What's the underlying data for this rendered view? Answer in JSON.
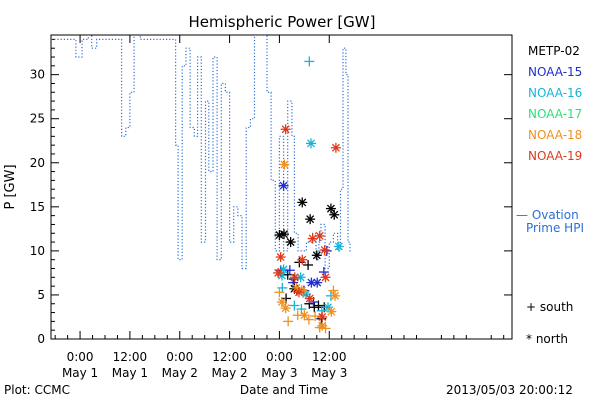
{
  "chart_data": {
    "type": "scatter",
    "title": "Hemispheric Power [GW]",
    "ylabel": "P [GW]",
    "xlabel": "Date and Time",
    "xlim": [
      -7,
      104
    ],
    "ylim": [
      0,
      34.5
    ],
    "yticks": [
      0,
      5,
      10,
      15,
      20,
      25,
      30
    ],
    "xticks": [
      {
        "t": 0,
        "time": "0:00",
        "date": "May 1"
      },
      {
        "t": 12,
        "time": "12:00",
        "date": "May 1"
      },
      {
        "t": 24,
        "time": "0:00",
        "date": "May 2"
      },
      {
        "t": 36,
        "time": "12:00",
        "date": "May 2"
      },
      {
        "t": 48,
        "time": "0:00",
        "date": "May 3"
      },
      {
        "t": 60,
        "time": "12:00",
        "date": "May 3"
      }
    ],
    "footer_left": "Plot: CCMC",
    "footer_right": "2013/05/03 20:00:12",
    "ovation": {
      "name": "— Ovation Prime HPI",
      "line1": "— Ovation",
      "line2": "Prime HPI",
      "color": "#2a6fd6",
      "points": [
        [
          -7,
          34
        ],
        [
          -1,
          34
        ],
        [
          -1,
          32
        ],
        [
          0.5,
          32
        ],
        [
          0.5,
          34
        ],
        [
          2,
          34
        ],
        [
          2,
          35
        ],
        [
          2.8,
          35
        ],
        [
          2.8,
          33
        ],
        [
          4,
          33
        ],
        [
          4,
          34
        ],
        [
          10,
          34
        ],
        [
          10,
          23
        ],
        [
          11,
          23
        ],
        [
          11,
          24
        ],
        [
          12,
          24
        ],
        [
          12,
          28
        ],
        [
          13,
          28
        ],
        [
          13,
          35
        ],
        [
          14.5,
          35
        ],
        [
          14.5,
          34
        ],
        [
          23,
          34
        ],
        [
          23,
          22
        ],
        [
          23.6,
          22
        ],
        [
          23.6,
          9
        ],
        [
          24.6,
          9
        ],
        [
          24.6,
          31
        ],
        [
          25.5,
          31
        ],
        [
          25.5,
          33
        ],
        [
          26.5,
          33
        ],
        [
          26.5,
          24
        ],
        [
          27.5,
          24
        ],
        [
          27.5,
          23
        ],
        [
          28.3,
          23
        ],
        [
          28.3,
          32
        ],
        [
          29.2,
          32
        ],
        [
          29.2,
          11
        ],
        [
          30.2,
          11
        ],
        [
          30.2,
          27
        ],
        [
          31,
          27
        ],
        [
          31,
          19
        ],
        [
          32,
          19
        ],
        [
          32,
          32
        ],
        [
          33,
          32
        ],
        [
          33,
          9
        ],
        [
          34,
          9
        ],
        [
          34,
          29
        ],
        [
          35,
          29
        ],
        [
          35,
          28
        ],
        [
          36,
          28
        ],
        [
          36,
          11
        ],
        [
          37,
          11
        ],
        [
          37,
          15
        ],
        [
          38,
          15
        ],
        [
          38,
          14
        ],
        [
          39,
          14
        ],
        [
          39,
          8
        ],
        [
          40,
          8
        ],
        [
          40,
          24
        ],
        [
          41,
          24
        ],
        [
          41,
          25
        ],
        [
          42,
          25
        ],
        [
          42,
          34.5
        ],
        [
          45,
          34.5
        ],
        [
          45,
          28
        ],
        [
          46,
          28
        ],
        [
          46,
          18
        ],
        [
          47,
          18
        ],
        [
          47,
          10
        ],
        [
          48,
          10
        ],
        [
          48,
          23
        ],
        [
          49,
          23
        ],
        [
          49,
          10
        ],
        [
          50,
          10
        ],
        [
          50,
          27
        ],
        [
          51,
          27
        ],
        [
          51,
          23
        ],
        [
          51.6,
          23
        ],
        [
          51.6,
          12
        ],
        [
          52.5,
          12
        ],
        [
          52.5,
          10
        ],
        [
          54.5,
          10
        ],
        [
          54.5,
          11
        ],
        [
          56,
          11
        ],
        [
          56,
          12
        ],
        [
          56.8,
          12
        ],
        [
          56.8,
          9
        ],
        [
          57.5,
          9
        ],
        [
          57.5,
          11
        ],
        [
          58,
          11
        ],
        [
          58,
          13
        ],
        [
          59,
          13
        ],
        [
          59,
          8
        ],
        [
          60,
          8
        ],
        [
          60,
          11
        ],
        [
          61,
          11
        ],
        [
          61,
          12
        ],
        [
          62,
          12
        ],
        [
          62,
          10
        ],
        [
          62.7,
          10
        ],
        [
          62.7,
          17
        ],
        [
          63.3,
          17
        ],
        [
          63.3,
          33
        ],
        [
          64,
          33
        ],
        [
          64,
          30
        ],
        [
          64.5,
          30
        ],
        [
          64.5,
          11
        ],
        [
          65,
          11
        ],
        [
          65,
          10
        ],
        [
          65.5,
          10
        ]
      ]
    },
    "series": [
      {
        "name": "METP-02",
        "color": "#000000",
        "points": [
          {
            "x": 48.0,
            "y": 11.8,
            "m": "star"
          },
          {
            "x": 49.1,
            "y": 11.9,
            "m": "star"
          },
          {
            "x": 50.7,
            "y": 11.0,
            "m": "star"
          },
          {
            "x": 53.5,
            "y": 15.5,
            "m": "star"
          },
          {
            "x": 55.4,
            "y": 13.6,
            "m": "star"
          },
          {
            "x": 57.0,
            "y": 9.5,
            "m": "star"
          },
          {
            "x": 60.4,
            "y": 14.8,
            "m": "star"
          },
          {
            "x": 61.2,
            "y": 14.1,
            "m": "star"
          },
          {
            "x": 51.6,
            "y": 5.7,
            "m": "star"
          },
          {
            "x": 50.0,
            "y": 7.3,
            "m": "plus"
          },
          {
            "x": 51.5,
            "y": 6.8,
            "m": "plus"
          },
          {
            "x": 52.8,
            "y": 8.7,
            "m": "plus"
          },
          {
            "x": 54.9,
            "y": 8.4,
            "m": "plus"
          },
          {
            "x": 55.2,
            "y": 4.0,
            "m": "plus"
          },
          {
            "x": 56.4,
            "y": 3.6,
            "m": "plus"
          },
          {
            "x": 57.4,
            "y": 3.8,
            "m": "plus"
          },
          {
            "x": 58.1,
            "y": 2.3,
            "m": "plus"
          },
          {
            "x": 58.8,
            "y": 3.6,
            "m": "plus"
          },
          {
            "x": 49.6,
            "y": 4.6,
            "m": "plus"
          },
          {
            "x": 52.2,
            "y": 5.5,
            "m": "plus"
          }
        ]
      },
      {
        "name": "NOAA-15",
        "color": "#1e2ed0",
        "points": [
          {
            "x": 49.0,
            "y": 17.4,
            "m": "star"
          },
          {
            "x": 55.7,
            "y": 6.4,
            "m": "star"
          },
          {
            "x": 57.1,
            "y": 6.4,
            "m": "star"
          },
          {
            "x": 48.3,
            "y": 7.8,
            "m": "plus"
          },
          {
            "x": 50.5,
            "y": 7.8,
            "m": "plus"
          },
          {
            "x": 51.3,
            "y": 6.4,
            "m": "plus"
          },
          {
            "x": 53.9,
            "y": 5.5,
            "m": "plus"
          },
          {
            "x": 56.2,
            "y": 4.2,
            "m": "plus"
          },
          {
            "x": 58.7,
            "y": 7.6,
            "m": "plus"
          },
          {
            "x": 59.4,
            "y": 10.0,
            "m": "plus"
          }
        ]
      },
      {
        "name": "NOAA-16",
        "color": "#18b4d8",
        "points": [
          {
            "x": 55.2,
            "y": 31.5,
            "m": "plus"
          },
          {
            "x": 55.6,
            "y": 22.2,
            "m": "star"
          },
          {
            "x": 62.3,
            "y": 10.5,
            "m": "star"
          },
          {
            "x": 48.6,
            "y": 7.2,
            "m": "star"
          },
          {
            "x": 49.0,
            "y": 7.9,
            "m": "star"
          },
          {
            "x": 53.1,
            "y": 7.0,
            "m": "star"
          },
          {
            "x": 54.4,
            "y": 5.1,
            "m": "star"
          },
          {
            "x": 59.7,
            "y": 3.6,
            "m": "star"
          },
          {
            "x": 48.7,
            "y": 5.8,
            "m": "plus"
          },
          {
            "x": 51.6,
            "y": 3.8,
            "m": "plus"
          },
          {
            "x": 53.3,
            "y": 3.4,
            "m": "plus"
          },
          {
            "x": 58.2,
            "y": 3.2,
            "m": "plus"
          },
          {
            "x": 60.4,
            "y": 4.9,
            "m": "plus"
          }
        ]
      },
      {
        "name": "NOAA-17",
        "color": "#2ee07a",
        "points": []
      },
      {
        "name": "NOAA-18",
        "color": "#f09020",
        "points": [
          {
            "x": 49.2,
            "y": 19.8,
            "m": "star"
          },
          {
            "x": 48.6,
            "y": 4.2,
            "m": "star"
          },
          {
            "x": 49.5,
            "y": 3.5,
            "m": "star"
          },
          {
            "x": 52.1,
            "y": 5.8,
            "m": "star"
          },
          {
            "x": 53.4,
            "y": 5.5,
            "m": "star"
          },
          {
            "x": 54.0,
            "y": 2.7,
            "m": "star"
          },
          {
            "x": 58.3,
            "y": 1.5,
            "m": "star"
          },
          {
            "x": 60.5,
            "y": 3.1,
            "m": "star"
          },
          {
            "x": 61.4,
            "y": 4.9,
            "m": "star"
          },
          {
            "x": 48.0,
            "y": 5.3,
            "m": "plus"
          },
          {
            "x": 50.1,
            "y": 2.0,
            "m": "plus"
          },
          {
            "x": 52.4,
            "y": 2.7,
            "m": "plus"
          },
          {
            "x": 55.1,
            "y": 2.2,
            "m": "plus"
          },
          {
            "x": 56.6,
            "y": 2.6,
            "m": "plus"
          },
          {
            "x": 57.7,
            "y": 1.3,
            "m": "plus"
          },
          {
            "x": 59.1,
            "y": 1.2,
            "m": "plus"
          },
          {
            "x": 61.0,
            "y": 5.5,
            "m": "plus"
          }
        ]
      },
      {
        "name": "NOAA-19",
        "color": "#e03a1a",
        "points": [
          {
            "x": 49.5,
            "y": 23.8,
            "m": "star"
          },
          {
            "x": 61.6,
            "y": 21.7,
            "m": "star"
          },
          {
            "x": 56.0,
            "y": 11.4,
            "m": "star"
          },
          {
            "x": 57.7,
            "y": 11.7,
            "m": "star"
          },
          {
            "x": 58.9,
            "y": 10.1,
            "m": "star"
          },
          {
            "x": 48.3,
            "y": 9.3,
            "m": "star"
          },
          {
            "x": 53.5,
            "y": 9.0,
            "m": "star"
          },
          {
            "x": 59.1,
            "y": 7.0,
            "m": "star"
          },
          {
            "x": 47.7,
            "y": 7.5,
            "m": "star"
          },
          {
            "x": 51.7,
            "y": 7.0,
            "m": "star"
          },
          {
            "x": 52.7,
            "y": 5.3,
            "m": "star"
          },
          {
            "x": 55.3,
            "y": 4.6,
            "m": "star"
          },
          {
            "x": 58.3,
            "y": 2.5,
            "m": "star"
          }
        ]
      }
    ],
    "symbol_legend": {
      "south": "+ south",
      "north": "* north"
    }
  }
}
